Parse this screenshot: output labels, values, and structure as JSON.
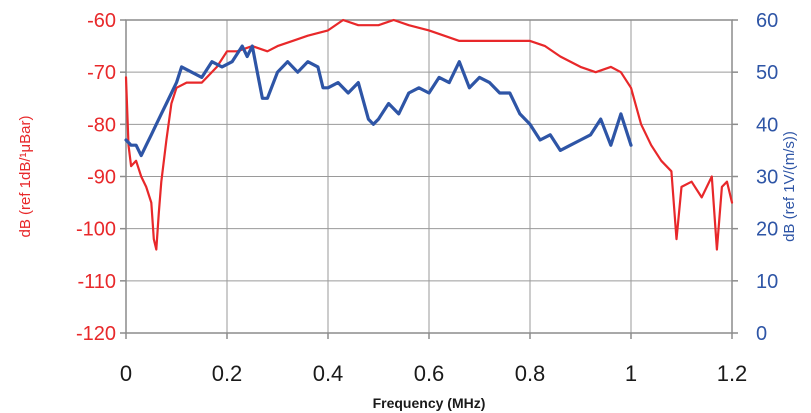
{
  "chart_data": {
    "type": "line",
    "xlabel": "Frequency (MHz)",
    "ylabel_left": "dB (ref 1dB/¹μBar)",
    "ylabel_right": "dB (ref 1V/(m/s))",
    "xlim": [
      0,
      1.2
    ],
    "ylim_left": [
      -120,
      -60
    ],
    "ylim_right": [
      0,
      60
    ],
    "x_ticks": [
      "0",
      "0.2",
      "0.4",
      "0.6",
      "0.8",
      "1",
      "1.2"
    ],
    "y_ticks_left": [
      "-60",
      "-70",
      "-80",
      "-90",
      "-100",
      "-110",
      "-120"
    ],
    "y_ticks_right": [
      "60",
      "50",
      "40",
      "30",
      "20",
      "10",
      "0"
    ],
    "grid": true,
    "series": [
      {
        "axis": "left",
        "color": "#e8282a",
        "x": [
          0.0,
          0.005,
          0.01,
          0.02,
          0.03,
          0.04,
          0.05,
          0.055,
          0.06,
          0.065,
          0.07,
          0.08,
          0.09,
          0.1,
          0.12,
          0.15,
          0.18,
          0.2,
          0.22,
          0.25,
          0.28,
          0.3,
          0.33,
          0.36,
          0.4,
          0.43,
          0.46,
          0.5,
          0.53,
          0.56,
          0.6,
          0.63,
          0.66,
          0.7,
          0.73,
          0.76,
          0.8,
          0.83,
          0.86,
          0.9,
          0.93,
          0.96,
          0.98,
          1.0,
          1.02,
          1.04,
          1.06,
          1.08,
          1.09,
          1.1,
          1.12,
          1.14,
          1.16,
          1.17,
          1.18,
          1.19,
          1.2
        ],
        "y": [
          -71,
          -84,
          -88,
          -87,
          -90,
          -92,
          -95,
          -102,
          -104,
          -97,
          -91,
          -83,
          -76,
          -73,
          -72,
          -72,
          -69,
          -66,
          -66,
          -65,
          -66,
          -65,
          -64,
          -63,
          -62,
          -60,
          -61,
          -61,
          -60,
          -61,
          -62,
          -63,
          -64,
          -64,
          -64,
          -64,
          -64,
          -65,
          -67,
          -69,
          -70,
          -69,
          -70,
          -73,
          -80,
          -84,
          -87,
          -89,
          -102,
          -92,
          -91,
          -94,
          -90,
          -104,
          -92,
          -91,
          -95
        ]
      },
      {
        "axis": "right",
        "color": "#2e55a6",
        "x": [
          0.0,
          0.01,
          0.02,
          0.03,
          0.04,
          0.05,
          0.06,
          0.07,
          0.08,
          0.1,
          0.11,
          0.13,
          0.15,
          0.17,
          0.19,
          0.21,
          0.23,
          0.24,
          0.25,
          0.26,
          0.27,
          0.28,
          0.3,
          0.32,
          0.34,
          0.36,
          0.38,
          0.39,
          0.4,
          0.42,
          0.44,
          0.46,
          0.48,
          0.49,
          0.5,
          0.52,
          0.54,
          0.56,
          0.58,
          0.6,
          0.62,
          0.64,
          0.66,
          0.68,
          0.7,
          0.72,
          0.74,
          0.76,
          0.78,
          0.8,
          0.82,
          0.84,
          0.86,
          0.88,
          0.9,
          0.92,
          0.94,
          0.96,
          0.98,
          1.0
        ],
        "y": [
          37,
          36,
          36,
          34,
          36,
          38,
          40,
          42,
          44,
          48,
          51,
          50,
          49,
          52,
          51,
          52,
          55,
          53,
          55,
          50,
          45,
          45,
          50,
          52,
          50,
          52,
          51,
          47,
          47,
          48,
          46,
          48,
          41,
          40,
          41,
          44,
          42,
          46,
          47,
          46,
          49,
          48,
          52,
          47,
          49,
          48,
          46,
          46,
          42,
          40,
          37,
          38,
          35,
          36,
          37,
          38,
          41,
          36,
          42,
          36
        ]
      }
    ]
  }
}
